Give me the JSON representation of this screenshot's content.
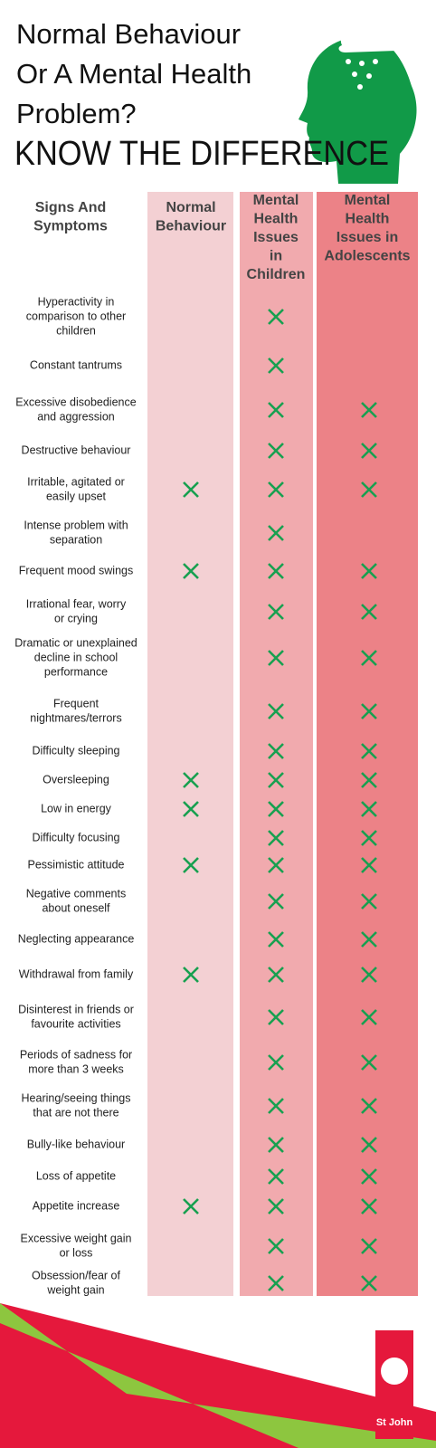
{
  "header": {
    "title_lines": [
      "Normal Behaviour",
      "Or A Mental Health",
      "Problem?"
    ],
    "subtitle": "KNOW THE DIFFERENCE"
  },
  "table": {
    "columns": [
      [
        "Signs And",
        "Symptoms"
      ],
      [
        "Normal",
        "Behaviour"
      ],
      [
        "Mental",
        "Health",
        "Issues",
        "in",
        "Children"
      ],
      [
        "Mental",
        "Health",
        "Issues in",
        "Adolescents"
      ]
    ],
    "rows": [
      {
        "label": [
          "Hyperactivity in",
          "comparison to other",
          "children"
        ],
        "marks": [
          false,
          true,
          false
        ]
      },
      {
        "label": [
          "Constant tantrums"
        ],
        "marks": [
          false,
          true,
          false
        ]
      },
      {
        "label": [
          "Excessive disobedience",
          "and aggression"
        ],
        "marks": [
          false,
          true,
          true
        ]
      },
      {
        "label": [
          "Destructive behaviour"
        ],
        "marks": [
          false,
          true,
          true
        ]
      },
      {
        "label": [
          "Irritable, agitated or",
          "easily upset"
        ],
        "marks": [
          true,
          true,
          true
        ]
      },
      {
        "label": [
          "Intense problem with",
          "separation"
        ],
        "marks": [
          false,
          true,
          false
        ]
      },
      {
        "label": [
          "Frequent mood swings"
        ],
        "marks": [
          true,
          true,
          true
        ]
      },
      {
        "label": [
          "Irrational fear, worry",
          "or crying"
        ],
        "marks": [
          false,
          true,
          true
        ]
      },
      {
        "label": [
          "Dramatic or unexplained",
          "decline in school",
          "performance"
        ],
        "marks": [
          false,
          true,
          true
        ]
      },
      {
        "label": [
          "Frequent",
          "nightmares/terrors"
        ],
        "marks": [
          false,
          true,
          true
        ]
      },
      {
        "label": [
          "Difficulty sleeping"
        ],
        "marks": [
          false,
          true,
          true
        ]
      },
      {
        "label": [
          "Oversleeping"
        ],
        "marks": [
          true,
          true,
          true
        ]
      },
      {
        "label": [
          "Low in energy"
        ],
        "marks": [
          true,
          true,
          true
        ]
      },
      {
        "label": [
          "Difficulty focusing"
        ],
        "marks": [
          false,
          true,
          true
        ]
      },
      {
        "label": [
          "Pessimistic attitude"
        ],
        "marks": [
          true,
          true,
          true
        ]
      },
      {
        "label": [
          "Negative comments",
          "about oneself"
        ],
        "marks": [
          false,
          true,
          true
        ]
      },
      {
        "label": [
          "Neglecting appearance"
        ],
        "marks": [
          false,
          true,
          true
        ]
      },
      {
        "label": [
          "Withdrawal from family"
        ],
        "marks": [
          true,
          true,
          true
        ]
      },
      {
        "label": [
          "Disinterest in friends or",
          "favourite activities"
        ],
        "marks": [
          false,
          true,
          true
        ]
      },
      {
        "label": [
          "Periods of sadness for",
          "more than 3 weeks"
        ],
        "marks": [
          false,
          true,
          true
        ]
      },
      {
        "label": [
          "Hearing/seeing things",
          "that are not there"
        ],
        "marks": [
          false,
          true,
          true
        ]
      },
      {
        "label": [
          "Bully-like behaviour"
        ],
        "marks": [
          false,
          true,
          true
        ]
      },
      {
        "label": [
          "Loss of appetite"
        ],
        "marks": [
          false,
          true,
          true
        ]
      },
      {
        "label": [
          "Appetite increase"
        ],
        "marks": [
          true,
          true,
          true
        ]
      },
      {
        "label": [
          "Excessive weight gain",
          "or loss"
        ],
        "marks": [
          false,
          true,
          true
        ]
      },
      {
        "label": [
          "Obsession/fear of",
          "weight gain"
        ],
        "marks": [
          false,
          true,
          true
        ]
      }
    ]
  },
  "footer": {
    "logo": "St John"
  }
}
